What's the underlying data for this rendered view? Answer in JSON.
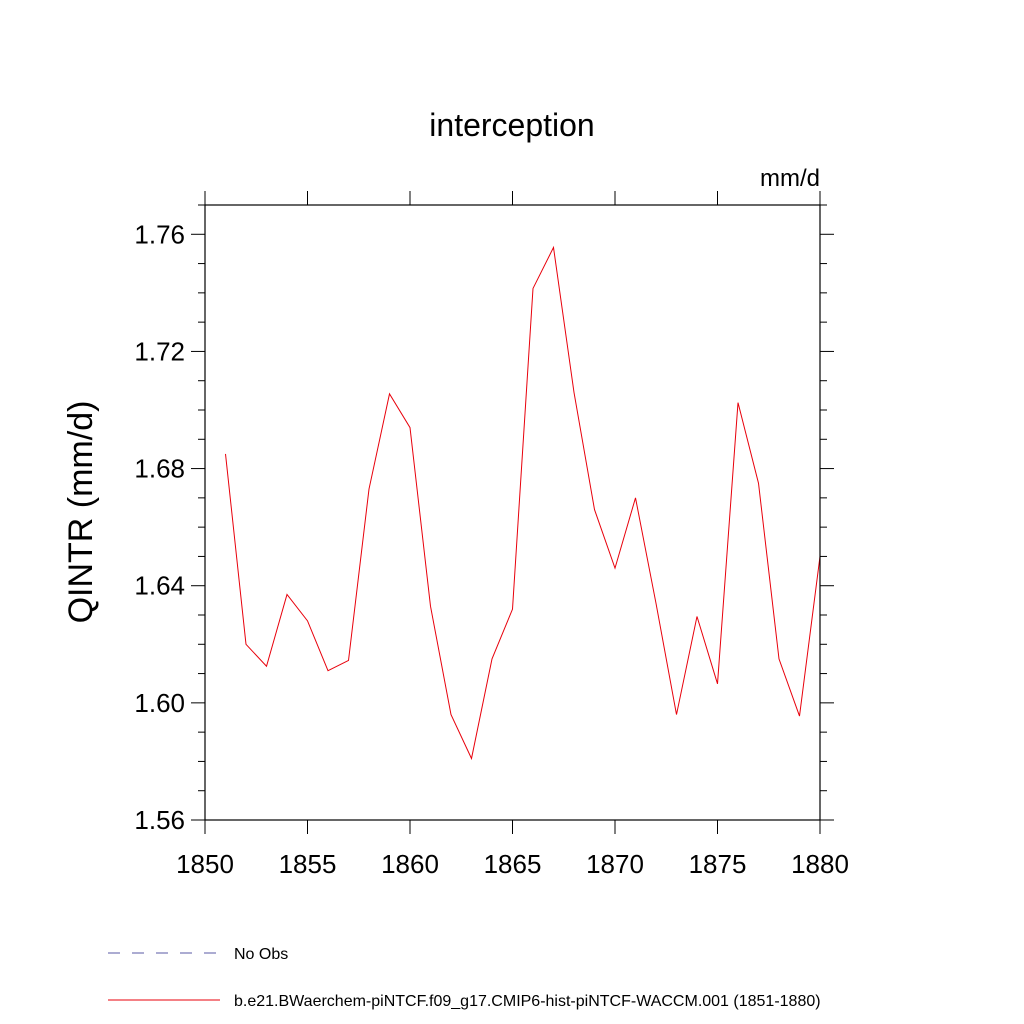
{
  "chart_data": {
    "type": "line",
    "title": "interception",
    "units_label": "mm/d",
    "ylabel": "QINTR  (mm/d)",
    "xlabel": "",
    "xlim": [
      1850,
      1880
    ],
    "ylim": [
      1.56,
      1.77
    ],
    "x_ticks": [
      1850,
      1855,
      1860,
      1865,
      1870,
      1875,
      1880
    ],
    "x_tick_labels": [
      "1850",
      "1855",
      "1860",
      "1865",
      "1870",
      "1875",
      "1880"
    ],
    "y_ticks": [
      1.56,
      1.6,
      1.64,
      1.68,
      1.72,
      1.76
    ],
    "y_tick_labels": [
      "1.56",
      "1.60",
      "1.64",
      "1.68",
      "1.72",
      "1.76"
    ],
    "grid": false,
    "legend_placement": "bottom-left",
    "series": [
      {
        "name": "b.e21.BWaerchem-piNTCF.f09_g17.CMIP6-hist-piNTCF-WACCM.001 (1851-1880)",
        "color": "#e8000b",
        "style": "solid",
        "x": [
          1851,
          1852,
          1853,
          1854,
          1855,
          1856,
          1857,
          1858,
          1859,
          1860,
          1861,
          1862,
          1863,
          1864,
          1865,
          1866,
          1867,
          1868,
          1869,
          1870,
          1871,
          1872,
          1873,
          1874,
          1875,
          1876,
          1877,
          1878,
          1879,
          1880
        ],
        "values": [
          1.685,
          1.62,
          1.6125,
          1.637,
          1.628,
          1.611,
          1.6145,
          1.673,
          1.7055,
          1.694,
          1.633,
          1.596,
          1.581,
          1.615,
          1.632,
          1.7415,
          1.7555,
          1.706,
          1.666,
          1.646,
          1.67,
          1.634,
          1.596,
          1.6295,
          1.6065,
          1.7025,
          1.675,
          1.615,
          1.5955,
          1.65
        ]
      }
    ],
    "legend": [
      {
        "label": "No Obs",
        "color": "#5a5aa6",
        "style": "dashed"
      },
      {
        "label": "b.e21.BWaerchem-piNTCF.f09_g17.CMIP6-hist-piNTCF-WACCM.001 (1851-1880)",
        "color": "#e8000b",
        "style": "solid"
      }
    ]
  }
}
